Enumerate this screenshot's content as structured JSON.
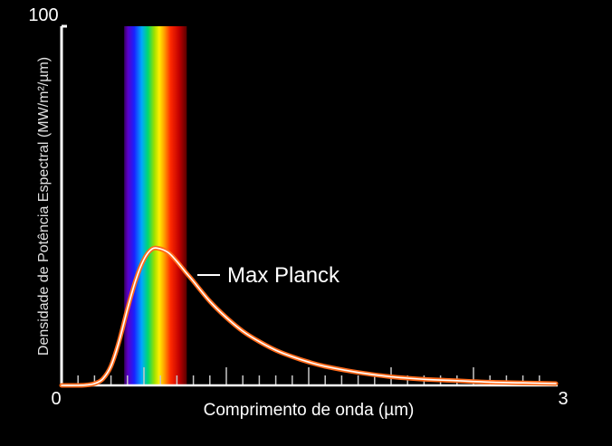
{
  "chart_data": {
    "type": "line",
    "title": "",
    "xlabel": "Comprimento de onda (µm)",
    "ylabel": "Densidade de Potência Espectral (MW/m²/µm)",
    "xlim": [
      0,
      3
    ],
    "ylim": [
      0,
      100
    ],
    "x_tick_labels": [
      "0",
      "3"
    ],
    "y_tick_labels": [
      "100"
    ],
    "x_minor_tick_step": 0.1,
    "x_major_tick_step": 0.5,
    "grid": false,
    "legend": "none",
    "visible_spectrum_band": [
      0.38,
      0.76
    ],
    "colors": {
      "background": "#000000",
      "curve_outer": "#ff6a1a",
      "curve_inner": "#ffffff",
      "axis": "#ffffff"
    },
    "series": [
      {
        "name": "Max Planck",
        "x": [
          0.0,
          0.1,
          0.15,
          0.2,
          0.25,
          0.3,
          0.35,
          0.4,
          0.45,
          0.5,
          0.55,
          0.6,
          0.65,
          0.7,
          0.75,
          0.8,
          0.9,
          1.0,
          1.1,
          1.2,
          1.3,
          1.4,
          1.5,
          1.6,
          1.8,
          2.0,
          2.2,
          2.4,
          2.6,
          2.8,
          3.0
        ],
        "y": [
          0.0,
          0.0,
          0.1,
          0.5,
          1.8,
          5.4,
          12.4,
          21.3,
          29.3,
          35.1,
          38.0,
          38.0,
          36.9,
          34.5,
          31.7,
          29.0,
          23.4,
          18.9,
          15.1,
          12.2,
          9.8,
          8.0,
          6.5,
          5.3,
          3.6,
          2.4,
          1.7,
          1.3,
          0.9,
          0.7,
          0.5
        ]
      }
    ]
  }
}
